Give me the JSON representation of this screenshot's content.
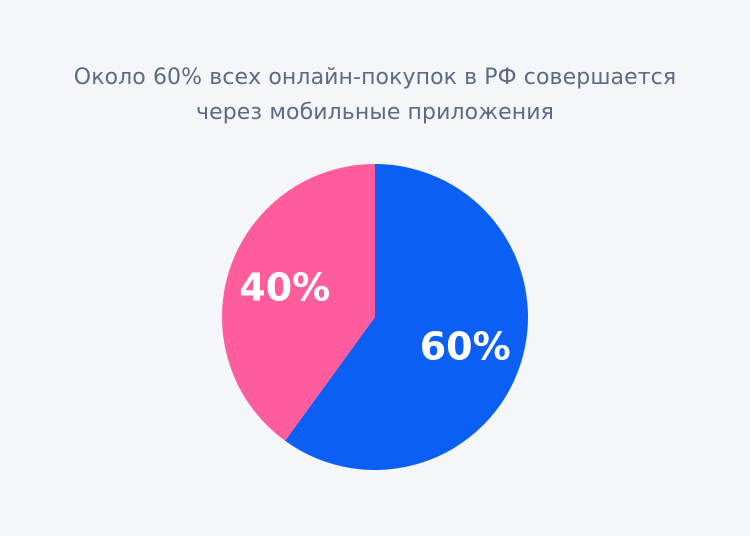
{
  "title_lines": [
    "Около 60% всех онлайн-покупок в РФ совершается",
    "через мобильные приложения"
  ],
  "chart_data": {
    "type": "pie",
    "title": "Около 60% всех онлайн-покупок в РФ совершается через мобильные приложения",
    "slices": [
      {
        "label": "60%",
        "value": 60,
        "color": "#0b5ff5"
      },
      {
        "label": "40%",
        "value": 40,
        "color": "#ff5c9d"
      }
    ],
    "start_angle_deg": 0,
    "direction": "clockwise",
    "legend": "none"
  }
}
